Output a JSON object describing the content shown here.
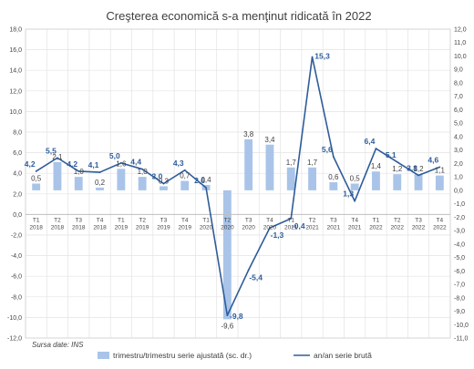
{
  "chart_data": {
    "type": "bar+line",
    "title": "Creşterea economică s-a menţinut ridicată în 2022",
    "source": "Sursa date: INS",
    "categories": [
      [
        "T1",
        "2018"
      ],
      [
        "T2",
        "2018"
      ],
      [
        "T3",
        "2018"
      ],
      [
        "T4",
        "2018"
      ],
      [
        "T1",
        "2019"
      ],
      [
        "T2",
        "2019"
      ],
      [
        "T3",
        "2019"
      ],
      [
        "T4",
        "2019"
      ],
      [
        "T1",
        "2020"
      ],
      [
        "T2",
        "2020"
      ],
      [
        "T3",
        "2020"
      ],
      [
        "T4",
        "2020"
      ],
      [
        "T1",
        "2021"
      ],
      [
        "T2",
        "2021"
      ],
      [
        "T3",
        "2021"
      ],
      [
        "T4",
        "2021"
      ],
      [
        "T1",
        "2022"
      ],
      [
        "T2",
        "2022"
      ],
      [
        "T3",
        "2022"
      ],
      [
        "T4",
        "2022"
      ]
    ],
    "series": [
      {
        "name": "trimestru/trimestru serie ajustată (sc. dr.)",
        "type": "bar",
        "axis": "right",
        "color": "#a9c4e8",
        "values": [
          0.5,
          2.1,
          1.0,
          0.2,
          1.6,
          1.0,
          0.3,
          0.7,
          0.4,
          -9.6,
          3.8,
          3.4,
          1.7,
          1.7,
          0.6,
          0.5,
          1.4,
          1.2,
          1.2,
          1.1
        ],
        "labels": [
          "0,5",
          "2,1",
          "1,0",
          "0,2",
          "1,6",
          "1,0",
          "0,3",
          "0,7",
          "0,4",
          "-9,6",
          "3,8",
          "3,4",
          "1,7",
          "1,7",
          "0,6",
          "0,5",
          "1,4",
          "1,2",
          "1,2",
          "1,1"
        ]
      },
      {
        "name": "an/an serie brută",
        "type": "line",
        "axis": "left",
        "color": "#2e5c9a",
        "values": [
          4.2,
          5.5,
          4.2,
          4.1,
          5.0,
          4.4,
          3.0,
          4.3,
          2.6,
          -9.8,
          -5.4,
          -1.3,
          -0.4,
          15.3,
          5.6,
          1.3,
          6.4,
          5.1,
          3.8,
          4.6
        ],
        "labels": [
          "4,2",
          "5,5",
          "4,2",
          "4,1",
          "5,0",
          "4,4",
          "3,0",
          "4,3",
          "2,6",
          "-9,8",
          "-5,4",
          "-1,3",
          "-0,4",
          "15,3",
          "5,6",
          "1,3",
          "6,4",
          "5,1",
          "3,8",
          "4,6"
        ]
      }
    ],
    "left_axis": {
      "ylim": [
        -12,
        18
      ],
      "ticks": [
        "-12,0",
        "-10,0",
        "-8,0",
        "-6,0",
        "-4,0",
        "-2,0",
        "0,0",
        "2,0",
        "4,0",
        "6,0",
        "8,0",
        "10,0",
        "12,0",
        "14,0",
        "16,0",
        "18,0"
      ]
    },
    "right_axis": {
      "ylim": [
        -11,
        12
      ],
      "ticks": [
        "-11,0",
        "-10,0",
        "-9,0",
        "-8,0",
        "-7,0",
        "-6,0",
        "-5,0",
        "-4,0",
        "-3,0",
        "-2,0",
        "-1,0",
        "0,0",
        "1,0",
        "2,0",
        "3,0",
        "4,0",
        "5,0",
        "6,0",
        "7,0",
        "8,0",
        "9,0",
        "10,0",
        "11,0",
        "12,0"
      ]
    },
    "grid": true,
    "legend_position": "bottom"
  }
}
